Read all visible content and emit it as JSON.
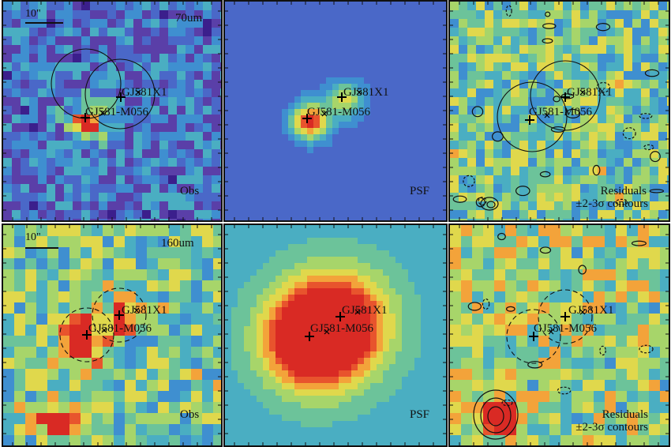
{
  "colormap": [
    "#3b1f8c",
    "#5a3fa8",
    "#4a68c8",
    "#3f8fd0",
    "#4aaec2",
    "#6cc39a",
    "#a7d56a",
    "#e0d84c",
    "#f3a33a",
    "#e8542d",
    "#d92a24"
  ],
  "panels": [
    {
      "id": "obs70",
      "kind": "obs",
      "band_label": "70um",
      "scale_label": "10\"",
      "corner_label": "Obs",
      "sources": [
        {
          "name": "GJ581X1"
        },
        {
          "name": "GJ581-M056"
        }
      ],
      "apertures": "solid"
    },
    {
      "id": "psf70",
      "kind": "psf",
      "corner_label": "PSF",
      "sources": [
        {
          "name": "GJ581X1"
        },
        {
          "name": "GJ581-M056"
        }
      ]
    },
    {
      "id": "res70",
      "kind": "res",
      "corner_label": "Residuals",
      "corner_label2": "±2-3σ contours",
      "sources": [
        {
          "name": "GJ581X1"
        },
        {
          "name": "GJ581-M056"
        }
      ],
      "apertures": "solid"
    },
    {
      "id": "obs160",
      "kind": "obs",
      "band_label": "160um",
      "scale_label": "10\"",
      "corner_label": "Obs",
      "sources": [
        {
          "name": "GJ581X1"
        },
        {
          "name": "GJ581-M056"
        }
      ],
      "apertures": "dashed"
    },
    {
      "id": "psf160",
      "kind": "psf",
      "corner_label": "PSF",
      "sources": [
        {
          "name": "GJ581X1"
        },
        {
          "name": "GJ581-M056"
        }
      ]
    },
    {
      "id": "res160",
      "kind": "res",
      "corner_label": "Residuals",
      "corner_label2": "±2-3σ contours",
      "sources": [
        {
          "name": "GJ581X1"
        },
        {
          "name": "GJ581-M056"
        }
      ],
      "apertures": "dashed"
    }
  ]
}
